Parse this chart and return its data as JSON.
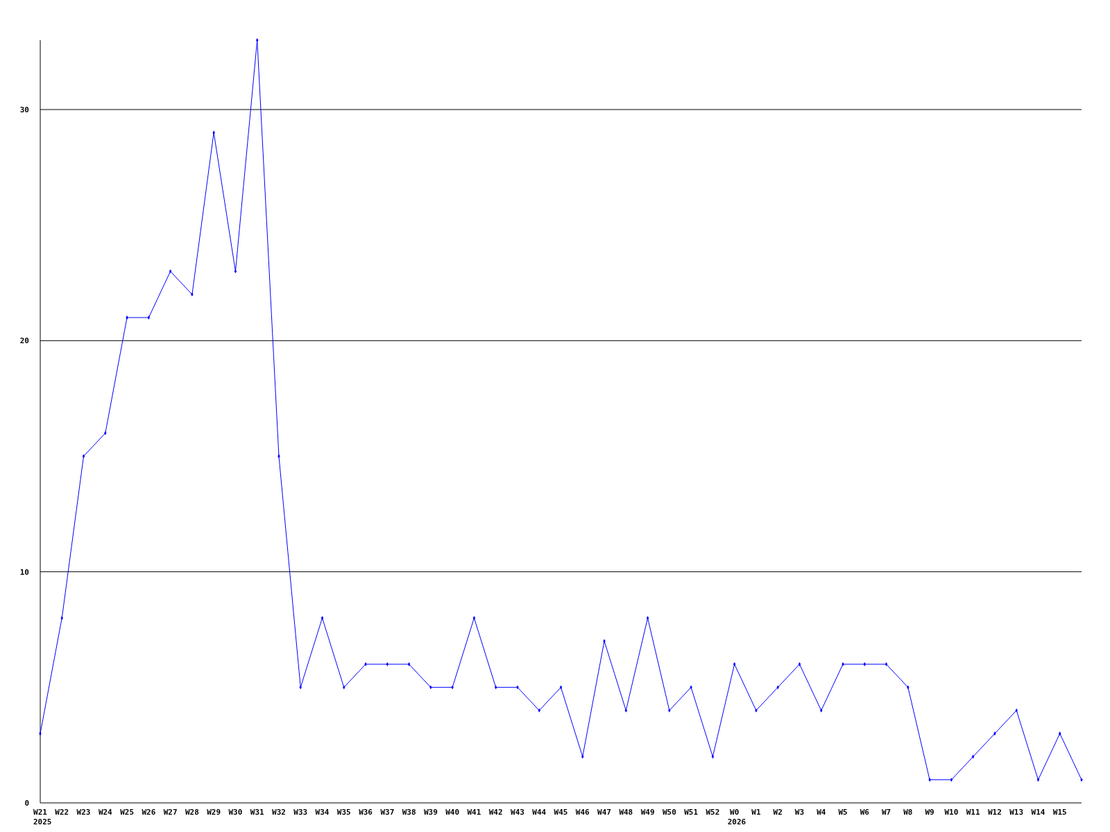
{
  "chart_data": {
    "type": "line",
    "categories": [
      "W21",
      "W22",
      "W23",
      "W24",
      "W25",
      "W26",
      "W27",
      "W28",
      "W29",
      "W30",
      "W31",
      "W32",
      "W33",
      "W34",
      "W35",
      "W36",
      "W37",
      "W38",
      "W39",
      "W40",
      "W41",
      "W42",
      "W43",
      "W44",
      "W45",
      "W46",
      "W47",
      "W48",
      "W49",
      "W50",
      "W51",
      "W52",
      "W0",
      "W1",
      "W2",
      "W3",
      "W4",
      "W5",
      "W6",
      "W7",
      "W8",
      "W9",
      "W10",
      "W11",
      "W12",
      "W13",
      "W14",
      "W15",
      null
    ],
    "series": [
      {
        "color": "#0000ff",
        "values": [
          3,
          8,
          15,
          16,
          21,
          21,
          23,
          22,
          29,
          23,
          33,
          15,
          5,
          8,
          5,
          6,
          6,
          6,
          5,
          5,
          8,
          5,
          5,
          4,
          5,
          2,
          7,
          4,
          8,
          4,
          5,
          2,
          6,
          4,
          5,
          6,
          4,
          6,
          6,
          6,
          5,
          1,
          1,
          2,
          3,
          4,
          1,
          3,
          1
        ]
      }
    ],
    "ylim": [
      0,
      33
    ],
    "yticks": [
      0,
      10,
      20,
      30
    ],
    "grid": "y",
    "marker": "diamond",
    "annotations": [
      "2025",
      "2026"
    ]
  }
}
